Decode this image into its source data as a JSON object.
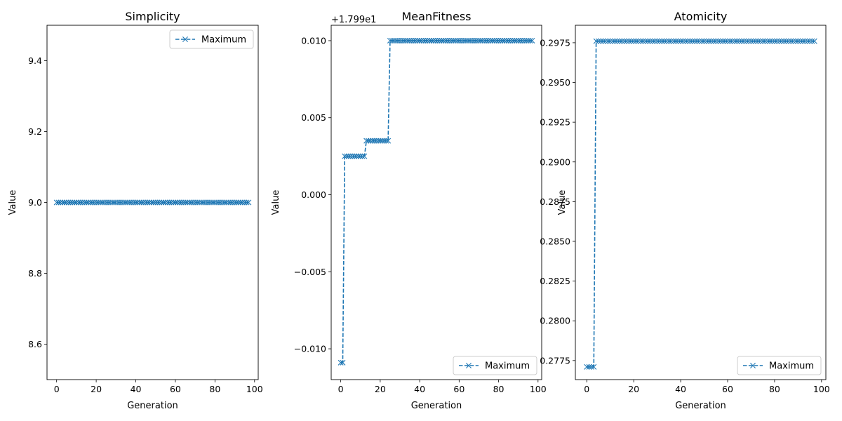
{
  "chart_data": [
    {
      "type": "line",
      "title": "Simplicity",
      "xlabel": "Generation",
      "ylabel": "Value",
      "xlim": [
        -4.85,
        101.85
      ],
      "ylim": [
        8.5,
        9.5
      ],
      "xticks": [
        0,
        20,
        40,
        60,
        80,
        100
      ],
      "yticks": [
        8.6,
        8.8,
        9.0,
        9.2,
        9.4
      ],
      "ytick_labels": [
        "8.6",
        "8.8",
        "9.0",
        "9.2",
        "9.4"
      ],
      "legend": "upper right",
      "grid": false,
      "offset_text": "",
      "series": [
        {
          "name": "Maximum",
          "color": "#1f77b4",
          "linestyle": "dashed",
          "marker": "x",
          "segments": [
            {
              "from": 0,
              "to": 97,
              "value": 9.0
            }
          ]
        }
      ]
    },
    {
      "type": "line",
      "title": "MeanFitness",
      "xlabel": "Generation",
      "ylabel": "Value",
      "xlim": [
        -4.85,
        101.85
      ],
      "ylim": [
        -0.012,
        0.011
      ],
      "xticks": [
        0,
        20,
        40,
        60,
        80,
        100
      ],
      "yticks": [
        -0.01,
        -0.005,
        0.0,
        0.005,
        0.01
      ],
      "ytick_labels": [
        "−0.010",
        "−0.005",
        "0.000",
        "0.005",
        "0.010"
      ],
      "legend": "lower right",
      "grid": false,
      "offset_text": "+1.799e1",
      "series": [
        {
          "name": "Maximum",
          "color": "#1f77b4",
          "linestyle": "dashed",
          "marker": "x",
          "segments": [
            {
              "from": 0,
              "to": 1,
              "value": -0.0109
            },
            {
              "from": 2,
              "to": 12,
              "value": 0.0025
            },
            {
              "from": 13,
              "to": 24,
              "value": 0.0035
            },
            {
              "from": 25,
              "to": 97,
              "value": 0.01
            }
          ]
        }
      ]
    },
    {
      "type": "line",
      "title": "Atomicity",
      "xlabel": "Generation",
      "ylabel": "Value",
      "xlim": [
        -4.85,
        101.85
      ],
      "ylim": [
        0.2763,
        0.2986
      ],
      "xticks": [
        0,
        20,
        40,
        60,
        80,
        100
      ],
      "yticks": [
        0.2775,
        0.28,
        0.2825,
        0.285,
        0.2875,
        0.29,
        0.2925,
        0.295,
        0.2975
      ],
      "ytick_labels": [
        "0.2775",
        "0.2800",
        "0.2825",
        "0.2850",
        "0.2875",
        "0.2900",
        "0.2925",
        "0.2950",
        "0.2975"
      ],
      "legend": "lower right",
      "grid": false,
      "offset_text": "",
      "series": [
        {
          "name": "Maximum",
          "color": "#1f77b4",
          "linestyle": "dashed",
          "marker": "x",
          "segments": [
            {
              "from": 0,
              "to": 3,
              "value": 0.2771
            },
            {
              "from": 4,
              "to": 97,
              "value": 0.2976
            }
          ]
        }
      ]
    }
  ]
}
